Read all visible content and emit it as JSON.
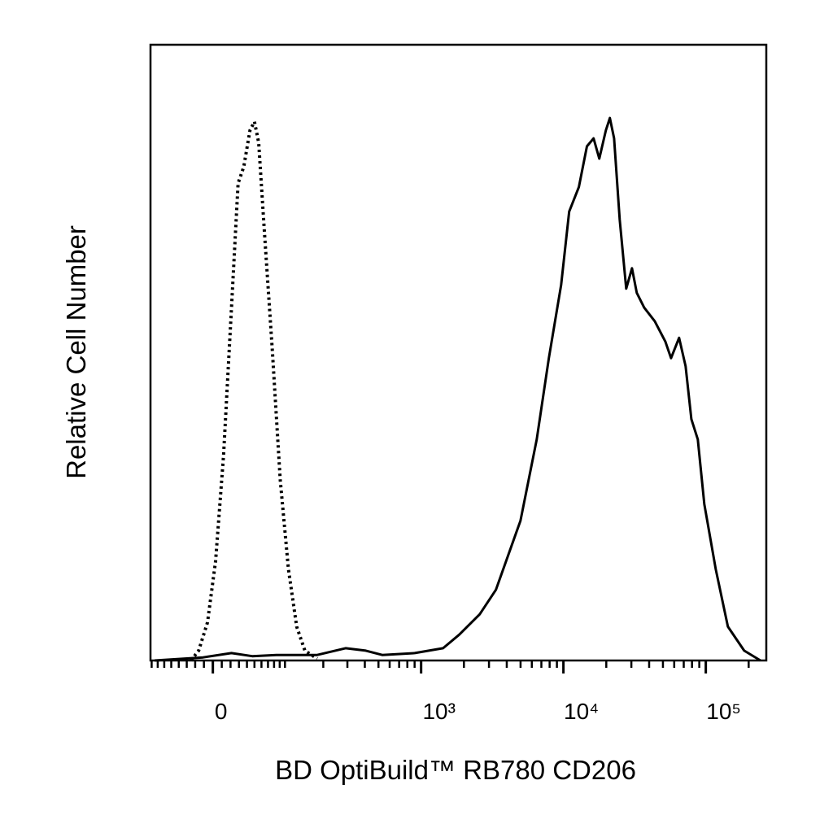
{
  "chart_data": {
    "type": "line",
    "x_label": "BD OptiBuild™ RB780 CD206",
    "y_label": "Relative Cell Number",
    "xscale": "asinh",
    "asinh_cofactor": 69,
    "xlim": [
      -82,
      266000
    ],
    "ylim": [
      0,
      100
    ],
    "xticks": [
      0,
      {
        "value": 1000,
        "label": "10³"
      },
      {
        "value": 10000,
        "label": "10⁴"
      },
      {
        "value": 100000,
        "label": "10⁵"
      }
    ],
    "minor_xticks": [
      -80,
      -70,
      -60,
      -50,
      -40,
      -30,
      -20,
      -10,
      10,
      20,
      30,
      40,
      50,
      60,
      70,
      80,
      90,
      100,
      200,
      300,
      400,
      500,
      600,
      700,
      800,
      900,
      2000,
      3000,
      4000,
      5000,
      6000,
      7000,
      8000,
      9000,
      20000,
      30000,
      40000,
      50000,
      60000,
      70000,
      80000,
      90000,
      200000
    ],
    "series": [
      {
        "style": "dotted",
        "color": "#000000",
        "x": [
          -25,
          -16,
          -6,
          3,
          12,
          21,
          29,
          36,
          44,
          50,
          56,
          64,
          77,
          91,
          107,
          125,
          145,
          180
        ],
        "values": [
          0,
          1.6,
          6.2,
          16.1,
          33.3,
          57.1,
          77.5,
          80.2,
          86.1,
          87.5,
          84.1,
          70.3,
          50.5,
          29.3,
          14.8,
          5.5,
          1.6,
          0.3
        ]
      },
      {
        "style": "solid",
        "color": "#000000",
        "x": [
          -75,
          -11,
          21,
          47,
          84,
          180,
          291,
          406,
          532,
          901,
          1428,
          1856,
          2581,
          3360,
          4989,
          6493,
          7901,
          9632,
          10971,
          12834,
          14628,
          16284,
          17871,
          19872,
          21183,
          22701,
          24840,
          27600,
          30291,
          32775,
          36915,
          43815,
          51957,
          56994,
          64929,
          72174,
          79143,
          87906,
          97635,
          117507,
          143037,
          186024,
          241983
        ],
        "values": [
          0,
          0.5,
          1.2,
          0.7,
          0.9,
          0.9,
          2.0,
          1.6,
          0.9,
          1.2,
          2.0,
          4.2,
          7.5,
          11.5,
          22.7,
          35.9,
          49.1,
          61.0,
          72.9,
          76.9,
          83.5,
          84.8,
          81.5,
          86.1,
          88.1,
          84.8,
          71.6,
          60.4,
          63.7,
          59.7,
          57.3,
          55.1,
          51.8,
          49.1,
          52.4,
          47.8,
          39.2,
          35.9,
          25.4,
          14.8,
          5.5,
          1.6,
          0
        ]
      }
    ]
  }
}
